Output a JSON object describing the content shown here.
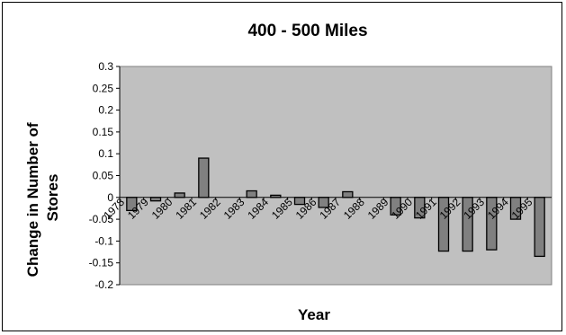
{
  "chart_data": {
    "type": "bar",
    "title": "400 - 500 Miles",
    "xlabel": "Year",
    "ylabel": "Change in Number of Stores",
    "ylabel_lines": [
      "Change in Number of",
      "Stores"
    ],
    "categories": [
      "1978",
      "1979",
      "1980",
      "1981",
      "1982",
      "1983",
      "1984",
      "1985",
      "1986",
      "1987",
      "1988",
      "1989",
      "1990",
      "1991",
      "1992",
      "1993",
      "1994",
      "1995"
    ],
    "values": [
      -0.03,
      -0.008,
      0.01,
      0.09,
      0.0,
      0.015,
      0.005,
      -0.016,
      -0.023,
      0.013,
      0.0,
      -0.04,
      -0.047,
      -0.123,
      -0.123,
      -0.12,
      -0.05,
      -0.135
    ],
    "yticks": [
      "0.3",
      "0.25",
      "0.2",
      "0.15",
      "0.1",
      "0.05",
      "0",
      "-0.05",
      "-0.1",
      "-0.15",
      "-0.2"
    ],
    "ylim": [
      -0.2,
      0.3
    ],
    "grid": false,
    "legend": "none",
    "colors": {
      "plot_background": "#c0c0c0",
      "bar_fill": "#808080",
      "bar_stroke": "#000000"
    }
  }
}
